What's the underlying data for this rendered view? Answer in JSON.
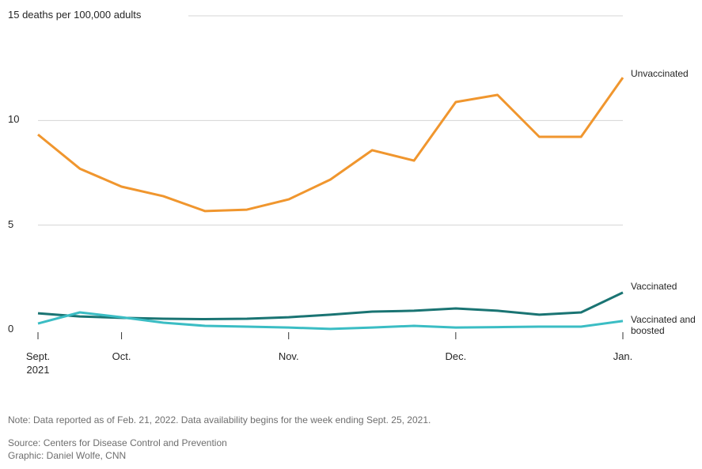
{
  "chart_data": {
    "type": "line",
    "categories": [
      "Sept. 2021",
      null,
      "Oct.",
      null,
      null,
      null,
      "Nov.",
      null,
      null,
      null,
      "Dec.",
      null,
      null,
      null,
      "Jan."
    ],
    "series": [
      {
        "name": "Unvaccinated",
        "color": "#f0962e",
        "values": [
          9.33,
          7.7,
          6.84,
          6.38,
          5.67,
          5.74,
          6.23,
          7.18,
          8.58,
          8.08,
          10.88,
          11.22,
          9.22,
          9.22,
          12.05
        ]
      },
      {
        "name": "Vaccinated",
        "color": "#1a7473",
        "values": [
          0.79,
          0.64,
          0.57,
          0.53,
          0.51,
          0.53,
          0.6,
          0.72,
          0.87,
          0.91,
          1.02,
          0.91,
          0.72,
          0.83,
          1.78
        ]
      },
      {
        "name": "Vaccinated and boosted",
        "color": "#3bbdc4",
        "values": [
          0.3,
          0.83,
          0.6,
          0.34,
          0.19,
          0.15,
          0.11,
          0.04,
          0.11,
          0.19,
          0.11,
          0.13,
          0.15,
          0.15,
          0.42
        ]
      }
    ],
    "ylim": [
      0,
      15
    ],
    "yticks": [
      0,
      5,
      10,
      {
        "value": 15,
        "label": "15 deaths per 100,000 adults"
      }
    ],
    "grid": true,
    "note": "Note: Data reported as of Feb. 21, 2022. Data availability begins for the week ending Sept. 25, 2021.",
    "source": "Source: Centers for Disease Control and Prevention",
    "credit": "Graphic: Daniel Wolfe, CNN"
  }
}
